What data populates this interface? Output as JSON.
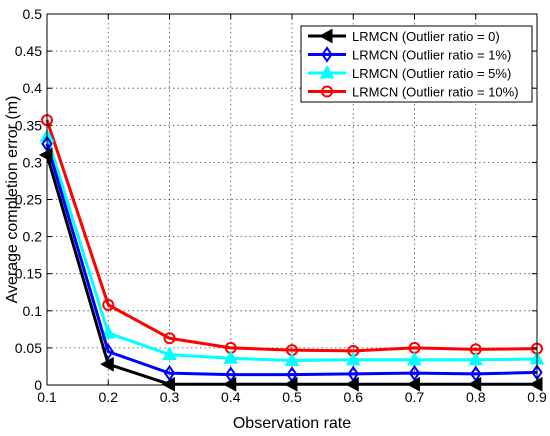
{
  "chart_data": {
    "type": "line",
    "title": "",
    "xlabel": "Observation rate",
    "ylabel": "Average completion error (m)",
    "xlim": [
      0.1,
      0.9
    ],
    "ylim": [
      0,
      0.5
    ],
    "x_ticks": [
      "0.1",
      "0.2",
      "0.3",
      "0.4",
      "0.5",
      "0.6",
      "0.7",
      "0.8",
      "0.9"
    ],
    "y_ticks": [
      "0",
      "0.05",
      "0.1",
      "0.15",
      "0.2",
      "0.25",
      "0.3",
      "0.35",
      "0.4",
      "0.45",
      "0.5"
    ],
    "grid": true,
    "legend_position": "top-right",
    "x": [
      0.1,
      0.2,
      0.3,
      0.4,
      0.5,
      0.6,
      0.7,
      0.8,
      0.9
    ],
    "series": [
      {
        "name": "LRMCN (Outlier ratio = 0)",
        "color": "#000000",
        "marker": "triangle-left",
        "values": [
          0.31,
          0.028,
          0.001,
          0.001,
          0.001,
          0.001,
          0.001,
          0.001,
          0.001
        ]
      },
      {
        "name": "LRMCN (Outlier ratio = 1%)",
        "color": "#0000ff",
        "marker": "diamond",
        "values": [
          0.325,
          0.045,
          0.016,
          0.014,
          0.014,
          0.015,
          0.016,
          0.015,
          0.017
        ]
      },
      {
        "name": "LRMCN (Outlier ratio = 5%)",
        "color": "#00ffff",
        "marker": "triangle-up",
        "values": [
          0.335,
          0.07,
          0.041,
          0.036,
          0.033,
          0.034,
          0.034,
          0.034,
          0.035
        ]
      },
      {
        "name": "LRMCN (Outlier ratio = 10%)",
        "color": "#ff0000",
        "marker": "circle",
        "values": [
          0.357,
          0.108,
          0.063,
          0.05,
          0.047,
          0.046,
          0.05,
          0.048,
          0.049
        ]
      }
    ]
  }
}
